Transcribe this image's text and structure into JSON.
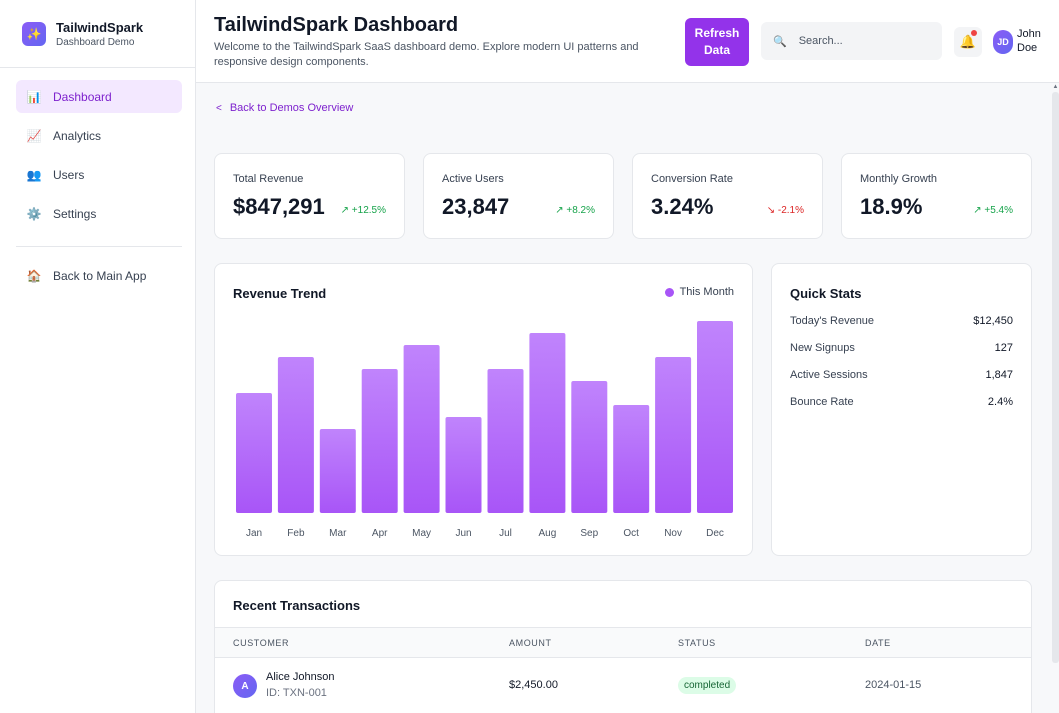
{
  "brand": {
    "name": "TailwindSpark",
    "subtitle": "Dashboard Demo",
    "logo_icon": "sparkles-icon"
  },
  "sidebar": {
    "items": [
      {
        "label": "Dashboard",
        "icon": "bar-chart-icon",
        "glyph": "📊",
        "active": true
      },
      {
        "label": "Analytics",
        "icon": "trend-chart-icon",
        "glyph": "📈",
        "active": false
      },
      {
        "label": "Users",
        "icon": "users-icon",
        "glyph": "👥",
        "active": false
      },
      {
        "label": "Settings",
        "icon": "gear-icon",
        "glyph": "⚙️",
        "active": false
      }
    ],
    "back_label": "Back to Main App",
    "back_glyph": "🏠"
  },
  "header": {
    "title": "TailwindSpark Dashboard",
    "description": "Welcome to the TailwindSpark SaaS dashboard demo. Explore modern UI patterns and responsive design components.",
    "refresh_label": "Refresh\nData",
    "search_placeholder": "Search...",
    "user_initials": "JD",
    "user_name": "John\nDoe"
  },
  "back_link": "Back to Demos Overview",
  "kpis": [
    {
      "label": "Total Revenue",
      "value": "$847,291",
      "change": "↗ +12.5%",
      "trend": "up"
    },
    {
      "label": "Active Users",
      "value": "23,847",
      "change": "↗ +8.2%",
      "trend": "up"
    },
    {
      "label": "Conversion Rate",
      "value": "3.24%",
      "change": "↘ -2.1%",
      "trend": "down"
    },
    {
      "label": "Monthly Growth",
      "value": "18.9%",
      "change": "↗ +5.4%",
      "trend": "up"
    }
  ],
  "revenue_chart": {
    "title": "Revenue Trend",
    "legend": "This Month"
  },
  "chart_data": {
    "type": "bar",
    "title": "Revenue Trend",
    "categories": [
      "Jan",
      "Feb",
      "Mar",
      "Apr",
      "May",
      "Jun",
      "Jul",
      "Aug",
      "Sep",
      "Oct",
      "Nov",
      "Dec"
    ],
    "series": [
      {
        "name": "This Month",
        "values": [
          60,
          78,
          42,
          72,
          84,
          48,
          72,
          90,
          66,
          54,
          78,
          96
        ]
      }
    ],
    "ylim": [
      0,
      100
    ],
    "grid": false,
    "legend_position": "top-right",
    "bar_color_top": "#c084fc",
    "bar_color_bottom": "#a855f7"
  },
  "quick_stats": {
    "title": "Quick Stats",
    "rows": [
      {
        "label": "Today's Revenue",
        "value": "$12,450"
      },
      {
        "label": "New Signups",
        "value": "127"
      },
      {
        "label": "Active Sessions",
        "value": "1,847"
      },
      {
        "label": "Bounce Rate",
        "value": "2.4%"
      }
    ]
  },
  "transactions": {
    "title": "Recent Transactions",
    "columns": [
      "CUSTOMER",
      "AMOUNT",
      "STATUS",
      "DATE"
    ],
    "rows": [
      {
        "initial": "A",
        "name": "Alice Johnson",
        "id": "ID: TXN-001",
        "amount": "$2,450.00",
        "status": "completed",
        "date": "2024-01-15"
      }
    ]
  },
  "colors": {
    "accent": "#9333ea",
    "accent_light": "#f3e8ff",
    "success": "#16a34a",
    "danger": "#dc2626"
  }
}
